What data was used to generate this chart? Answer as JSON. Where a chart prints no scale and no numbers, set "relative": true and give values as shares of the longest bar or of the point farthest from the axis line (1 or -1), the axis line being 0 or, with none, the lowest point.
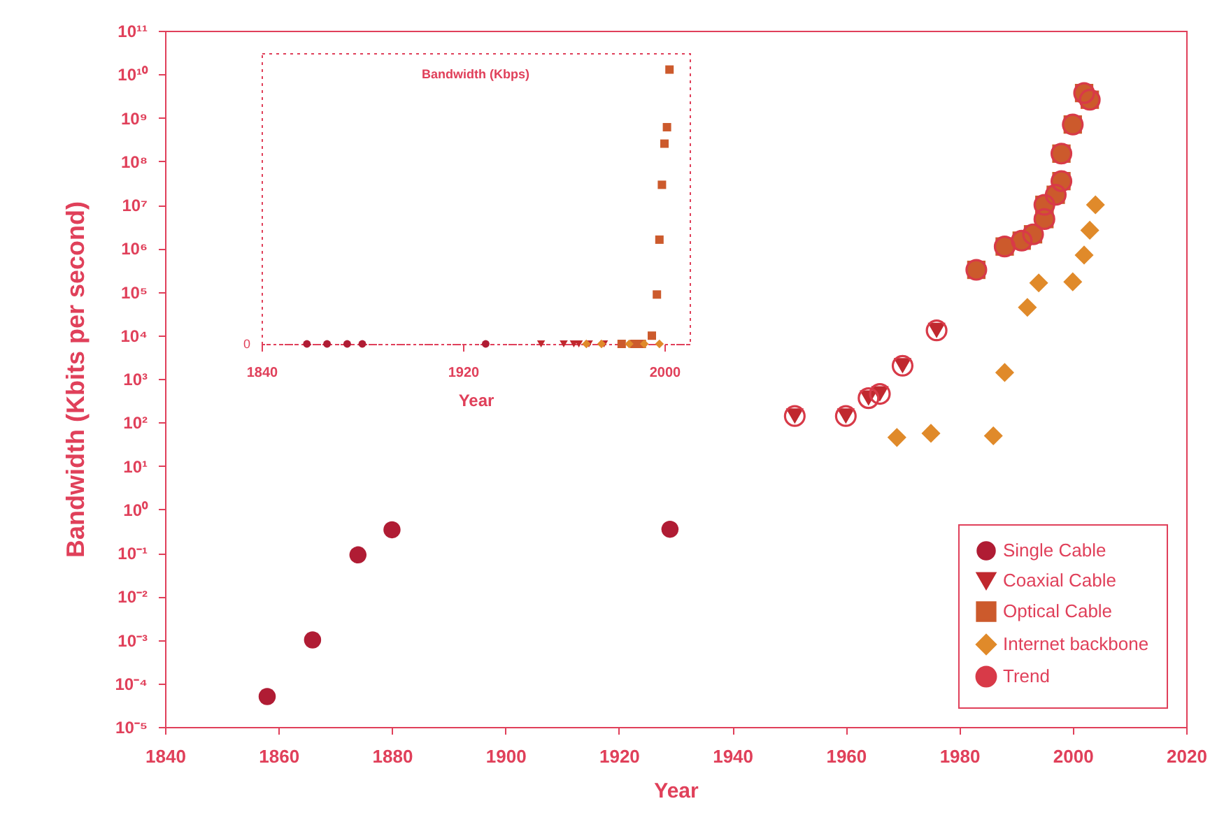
{
  "chart_data": [
    {
      "type": "scatter",
      "xlabel": "Year",
      "ylabel": "Bandwidth (Kbits per second)",
      "xlim": [
        1840,
        2020
      ],
      "xticks": [
        1840,
        1860,
        1880,
        1900,
        1920,
        1940,
        1960,
        1980,
        2000,
        2020
      ],
      "ylim": [
        1e-05,
        100000000000.0
      ],
      "yticks": [
        {
          "value": 1e-05,
          "label": "10⁻⁵"
        },
        {
          "value": 0.0001,
          "label": "10⁻⁴"
        },
        {
          "value": 0.001,
          "label": "10⁻³"
        },
        {
          "value": 0.01,
          "label": "10⁻²"
        },
        {
          "value": 0.1,
          "label": "10⁻¹"
        },
        {
          "value": 1,
          "label": "10⁰"
        },
        {
          "value": 10,
          "label": "10¹"
        },
        {
          "value": 100,
          "label": "10²"
        },
        {
          "value": 1000,
          "label": "10³"
        },
        {
          "value": 10000.0,
          "label": "10⁴"
        },
        {
          "value": 100000.0,
          "label": "10⁵"
        },
        {
          "value": 1000000.0,
          "label": "10⁶"
        },
        {
          "value": 10000000.0,
          "label": "10⁷"
        },
        {
          "value": 100000000.0,
          "label": "10⁸"
        },
        {
          "value": 1000000000.0,
          "label": "10⁹"
        },
        {
          "value": 10000000000.0,
          "label": "10¹⁰"
        },
        {
          "value": 100000000000.0,
          "label": "10¹¹"
        }
      ],
      "log": true,
      "legend": "bottom right",
      "series": [
        {
          "name": "Single Cable",
          "color": "#b01c34",
          "marker": "circle",
          "x": [
            1858,
            1866,
            1874,
            1880,
            1929
          ],
          "values": [
            5e-05,
            0.001,
            0.09,
            0.34,
            0.35
          ]
        },
        {
          "name": "Coaxial Cable",
          "color": "#c0282e",
          "marker": "triangle",
          "x": [
            1951,
            1960,
            1964,
            1966,
            1970,
            1976
          ],
          "values": [
            140,
            140,
            360,
            450,
            2000,
            13000
          ]
        },
        {
          "name": "Optical Cable",
          "color": "#cc5a2c",
          "marker": "square",
          "x": [
            1983,
            1988,
            1991,
            1993,
            1995,
            1995,
            1997,
            1998,
            1998,
            2000,
            2002,
            2003
          ],
          "values": [
            320000,
            1100000,
            1500000,
            2100000,
            4700000,
            10000000,
            17000000,
            35000000,
            150000000,
            700000000,
            3700000000,
            2600000000
          ]
        },
        {
          "name": "Internet backbone",
          "color": "#e08a2a",
          "marker": "diamond",
          "x": [
            1969,
            1975,
            1986,
            1988,
            1992,
            1994,
            2000,
            2002,
            2003,
            2004
          ],
          "values": [
            45,
            56,
            49,
            1400,
            44000,
            160000,
            170000,
            700000,
            2600000,
            10000000
          ]
        },
        {
          "name": "Trend",
          "color": "#d83a48",
          "marker": "circle",
          "x": [
            1951,
            1960,
            1964,
            1966,
            1970,
            1976,
            1983,
            1988,
            1991,
            1993,
            1995,
            1995,
            1997,
            1998,
            1998,
            2000,
            2002,
            2003
          ],
          "values": [
            140,
            140,
            360,
            450,
            2000,
            13000,
            320000,
            1100000,
            1500000,
            2100000,
            4700000,
            10000000,
            17000000,
            35000000,
            150000000,
            700000000,
            3700000000,
            2600000000
          ]
        }
      ]
    },
    {
      "type": "scatter",
      "title": "Bandwidth (Kbps)",
      "xlabel": "Year",
      "xlim": [
        1840,
        2010
      ],
      "xticks": [
        1840,
        1920,
        2000
      ],
      "relative": true,
      "annotations": [
        "0"
      ],
      "series": [
        {
          "color": "#b01c34",
          "marker": "circle",
          "x": [
            1858,
            1866,
            1874,
            1880,
            1929
          ],
          "values": [
            0,
            0,
            0,
            0,
            0
          ]
        },
        {
          "color": "#c0282e",
          "marker": "triangle",
          "x": [
            1951,
            1960,
            1964,
            1966,
            1970,
            1976
          ],
          "values": [
            0,
            0,
            0,
            0,
            0,
            0
          ]
        },
        {
          "color": "#cc5a2c",
          "marker": "square",
          "x": [
            1983,
            1988,
            1991,
            1995,
            1997,
            1998,
            1999,
            2000,
            2001,
            2002
          ],
          "values": [
            0,
            0,
            0,
            0.03,
            0.18,
            0.38,
            0.58,
            0.73,
            0.79,
            1
          ]
        },
        {
          "color": "#e08a2a",
          "marker": "diamond",
          "x": [
            1969,
            1975,
            1986,
            1992,
            1998
          ],
          "values": [
            0,
            0,
            0,
            0,
            0
          ]
        }
      ]
    }
  ]
}
